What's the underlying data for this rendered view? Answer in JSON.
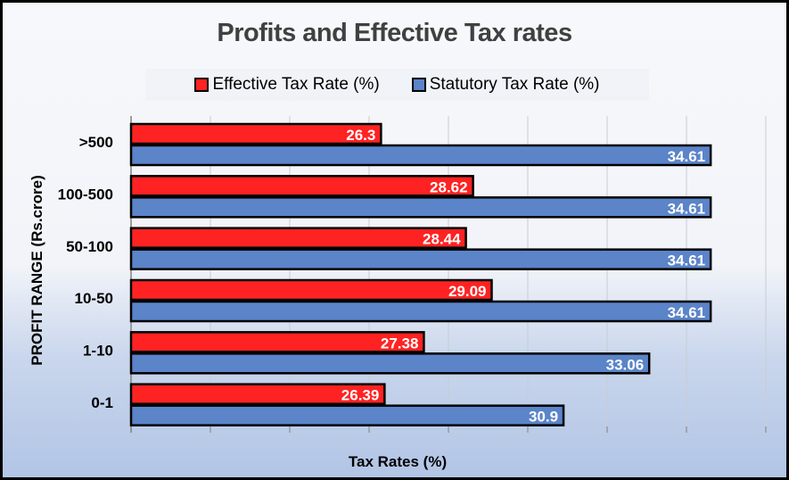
{
  "chart_data": {
    "type": "bar",
    "orientation": "horizontal",
    "title": "Profits and Effective Tax rates",
    "xlabel": "Tax Rates (%)",
    "ylabel": "PROFIT RANGE (Rs.crore)",
    "categories": [
      ">500",
      "100-500",
      "50-100",
      "10-50",
      "1-10",
      "0-1"
    ],
    "series": [
      {
        "name": "Effective Tax Rate (%)",
        "color": "#ff2222",
        "values": [
          26.3,
          28.62,
          28.44,
          29.09,
          27.38,
          26.39
        ]
      },
      {
        "name": "Statutory Tax Rate (%)",
        "color": "#5b84c9",
        "values": [
          34.61,
          34.61,
          34.61,
          34.61,
          33.06,
          30.9
        ]
      }
    ],
    "xlim": [
      20,
      36
    ],
    "x_gridline_step": 2,
    "x_tick_labels_shown": false,
    "grid": true,
    "legend": "top",
    "data_labels": true
  }
}
